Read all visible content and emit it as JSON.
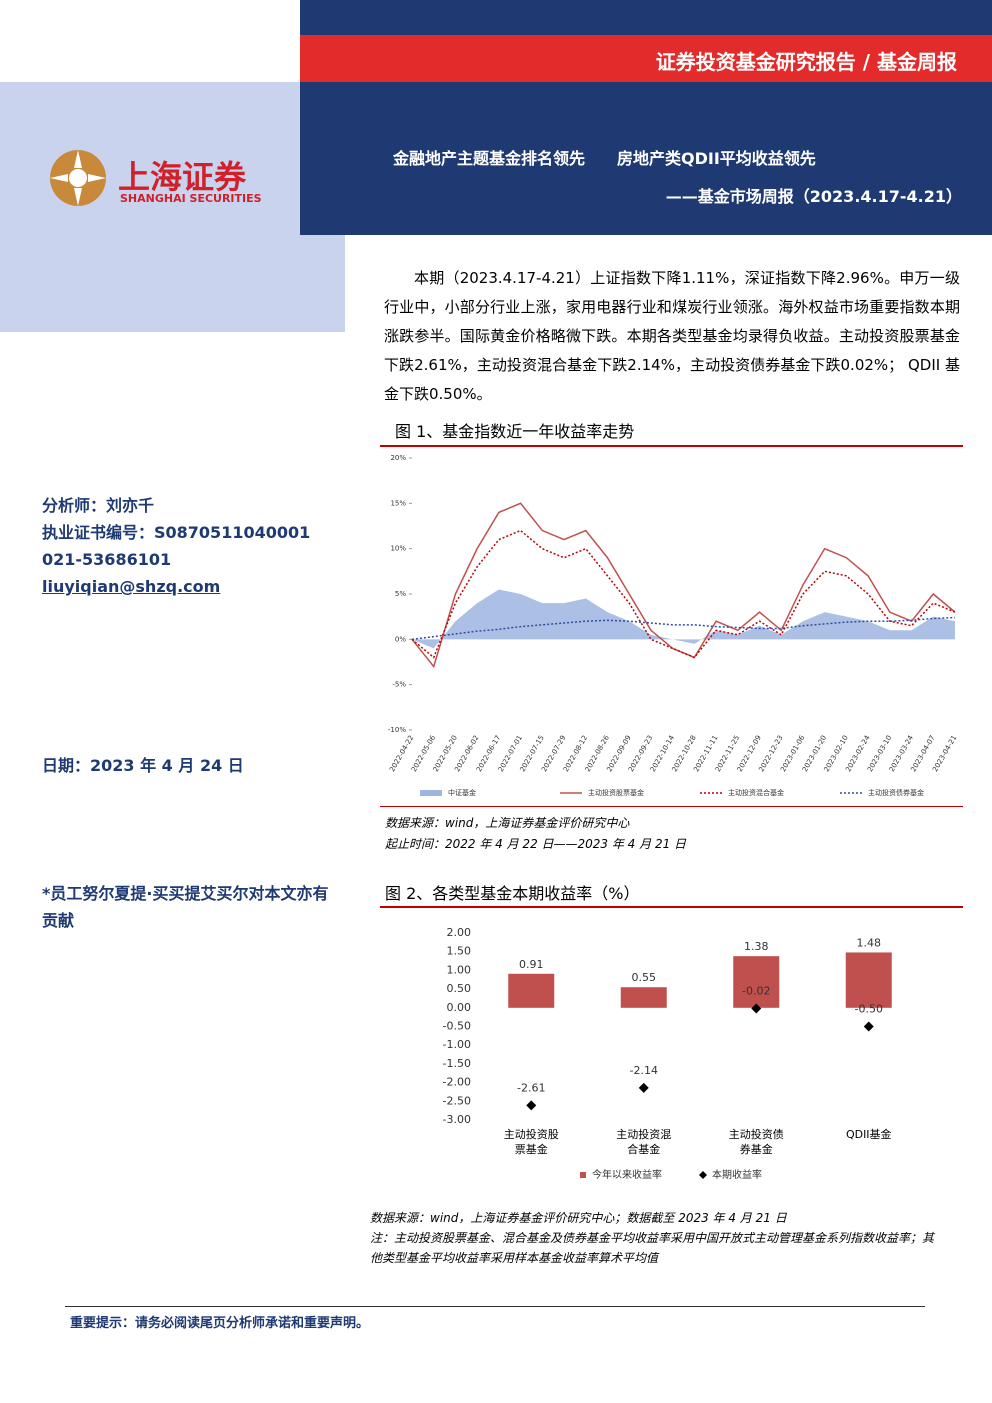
{
  "header": {
    "report_type": "证券投资基金研究报告 / 基金周报",
    "logo_cn": "上海证券",
    "logo_en": "SHANGHAI SECURITIES",
    "title": "金融地产主题基金排名领先　　房地产类QDII平均收益领先",
    "subtitle": "——基金市场周报（2023.4.17-4.21）"
  },
  "summary": "本期（2023.4.17-4.21）上证指数下降1.11%，深证指数下降2.96%。申万一级行业中，小部分行业上涨，家用电器行业和煤炭行业领涨。海外权益市场重要指数本期涨跌参半。国际黄金价格略微下跌。本期各类型基金均录得负收益。主动投资股票基金下跌2.61%，主动投资混合基金下跌2.14%，主动投资债券基金下跌0.02%； QDII 基金下跌0.50%。",
  "analyst": {
    "name": "分析师：刘亦千",
    "cert": "执业证书编号：S0870511040001",
    "phone": "021-53686101",
    "email": "liuyiqian@shzq.com"
  },
  "date": "日期：2023 年 4 月 24 日",
  "contributor": "*员工努尔夏提·买买提艾买尔对本文亦有贡献",
  "figure1": {
    "source": "数据来源：wind，上海证券基金评价研究中心",
    "period": "起止时间：2022 年 4 月 22 日——2023 年 4 月 21 日"
  },
  "figure2": {
    "source": "数据来源：wind，上海证券基金评价研究中心；数据截至 2023 年 4 月 21 日",
    "note": "注：主动投资股票基金、混合基金及债券基金平均收益率采用中国开放式主动管理基金系列指数收益率；其他类型基金平均收益率采用样本基金收益率算术平均值"
  },
  "footer": "重要提示：请务必阅读尾页分析师承诺和重要声明。",
  "chart_data": [
    {
      "type": "line",
      "title": "图 1、基金指数近一年收益率走势",
      "x": [
        "2022-04-22",
        "2022-05-06",
        "2022-05-20",
        "2022-06-02",
        "2022-06-17",
        "2022-07-01",
        "2022-07-15",
        "2022-07-29",
        "2022-08-12",
        "2022-08-26",
        "2022-09-09",
        "2022-09-23",
        "2022-10-14",
        "2022-10-28",
        "2022-11-11",
        "2022-11-25",
        "2022-12-09",
        "2022-12-23",
        "2023-01-06",
        "2023-01-20",
        "2023-02-10",
        "2023-02-24",
        "2023-03-10",
        "2023-03-24",
        "2023-04-07",
        "2023-04-21"
      ],
      "series": [
        {
          "name": "中证基金",
          "color": "#9db5e0",
          "style": "area",
          "values": [
            0,
            -1,
            2,
            4,
            5.5,
            5,
            4,
            4,
            4.5,
            3,
            2,
            0.5,
            0,
            -0.5,
            1,
            0.5,
            1.5,
            0.5,
            2,
            3,
            2.5,
            2,
            1,
            1,
            2.5,
            2
          ]
        },
        {
          "name": "主动投资股票基金",
          "color": "#c0504d",
          "style": "solid",
          "values": [
            0,
            -3,
            5,
            10,
            14,
            15,
            12,
            11,
            12,
            9,
            5,
            1,
            -1,
            -2,
            2,
            1,
            3,
            1,
            6,
            10,
            9,
            7,
            3,
            2,
            5,
            3
          ]
        },
        {
          "name": "主动投资混合基金",
          "color": "#c00000",
          "style": "dotted",
          "values": [
            0,
            -2,
            4,
            8,
            11,
            12,
            10,
            9,
            10,
            7,
            4,
            0,
            -1,
            -2,
            1,
            0.5,
            2,
            0.5,
            5,
            7.5,
            7,
            5,
            2,
            1.5,
            4,
            3
          ]
        },
        {
          "name": "主动投资债券基金",
          "color": "#2f4ea0",
          "style": "dotted",
          "values": [
            0,
            0.3,
            0.6,
            0.9,
            1.1,
            1.4,
            1.6,
            1.8,
            2,
            2.1,
            2,
            1.8,
            1.6,
            1.6,
            1.4,
            1.3,
            1.2,
            1.2,
            1.5,
            1.7,
            1.9,
            2,
            2,
            2.1,
            2.3,
            2.4
          ]
        }
      ],
      "ylim": [
        -10,
        20
      ],
      "yticks": [
        {
          "value": -10,
          "label": "-10%"
        },
        {
          "value": -5,
          "label": "-5%"
        },
        {
          "value": 0,
          "label": "0%"
        },
        {
          "value": 5,
          "label": "5%"
        },
        {
          "value": 10,
          "label": "10%"
        },
        {
          "value": 15,
          "label": "15%"
        },
        {
          "value": 20,
          "label": "20%"
        }
      ]
    },
    {
      "type": "bar",
      "title": "图 2、各类型基金本期收益率（%）",
      "categories": [
        "主动投资股票基金",
        "主动投资混合基金",
        "主动投资债券基金",
        "QDII基金"
      ],
      "series": [
        {
          "name": "今年以来收益率",
          "color": "#c0504d",
          "style": "bar",
          "values": [
            0.91,
            0.55,
            1.38,
            1.48
          ]
        },
        {
          "name": "本期收益率",
          "color": "#000000",
          "style": "point",
          "values": [
            -2.61,
            -2.14,
            -0.02,
            -0.5
          ],
          "value_labels": [
            "-2.61",
            "-2.14",
            "-0.02",
            "-0.50"
          ]
        }
      ],
      "ylim": [
        -3,
        2
      ],
      "yticks": [
        {
          "value": -3,
          "label": "-3.00"
        },
        {
          "value": -2.5,
          "label": "-2.50"
        },
        {
          "value": -2,
          "label": "-2.00"
        },
        {
          "value": -1.5,
          "label": "-1.50"
        },
        {
          "value": -1,
          "label": "-1.00"
        },
        {
          "value": -0.5,
          "label": "-0.50"
        },
        {
          "value": 0,
          "label": "0.00"
        },
        {
          "value": 0.5,
          "label": "0.50"
        },
        {
          "value": 1,
          "label": "1.00"
        },
        {
          "value": 1.5,
          "label": "1.50"
        },
        {
          "value": 2,
          "label": "2.00"
        }
      ]
    }
  ]
}
